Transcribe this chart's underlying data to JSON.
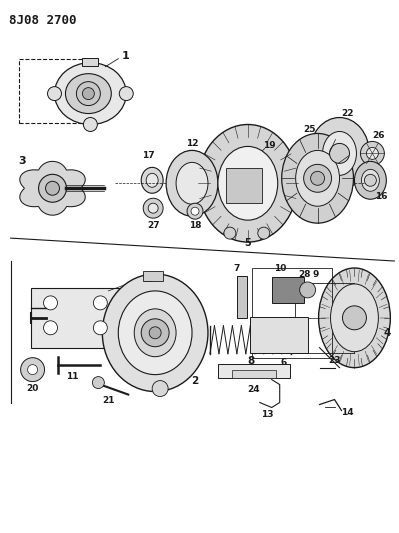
{
  "title": "8J08 2700",
  "bg_color": "#ffffff",
  "fg_color": "#1a1a1a",
  "fig_width": 3.99,
  "fig_height": 5.33,
  "dpi": 100
}
